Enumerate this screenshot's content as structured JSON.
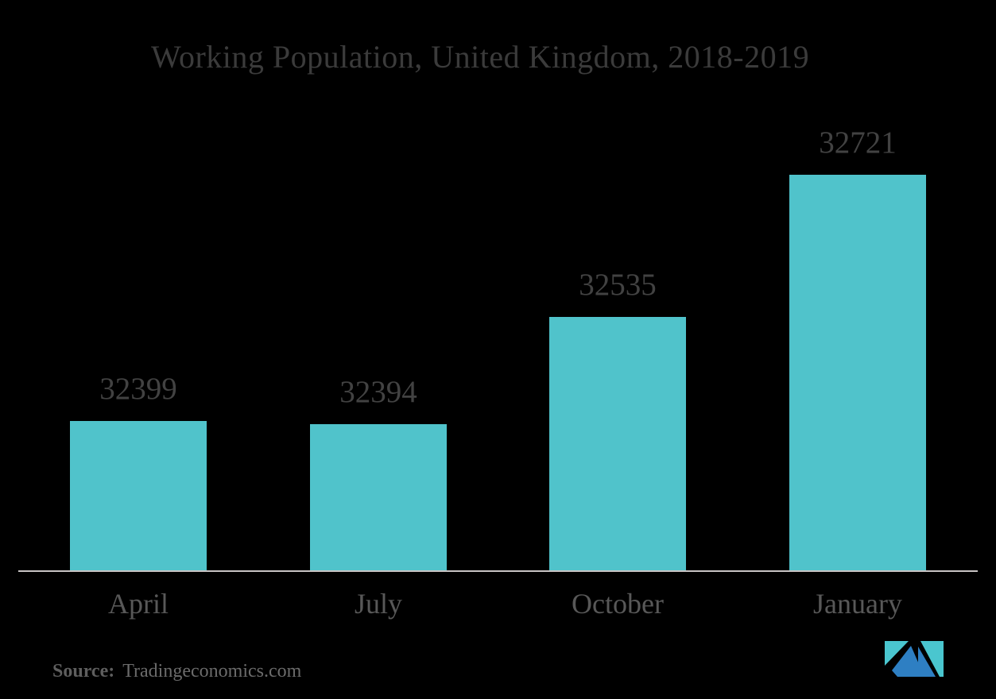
{
  "chart_data": {
    "type": "bar",
    "title": "Working Population, United Kingdom, 2018-2019",
    "categories": [
      "April",
      "July",
      "October",
      "January"
    ],
    "values": [
      32399,
      32394,
      32535,
      32721
    ],
    "value_labels": [
      "32399",
      "32394",
      "32535",
      "32721"
    ],
    "xlabel": "",
    "ylabel": "",
    "ylim": [
      32203,
      32745
    ],
    "grid": false,
    "legend_position": "none",
    "bar_color": "#50C3CB",
    "axis_line_color": "#C8C4C4"
  },
  "source": {
    "label": "Source:",
    "value": "Tradingeconomics.com"
  },
  "logo": {
    "name": "mordor-intelligence-logo",
    "teal": "#4AC6CF",
    "blue": "#2E7FC3"
  },
  "colors": {
    "background": "#000000",
    "title_text": "#3B3B3B",
    "value_label_text": "#424242",
    "category_label_text": "#585858",
    "source_label_text": "#5E5E5E",
    "source_value_text": "#6B6B6B"
  }
}
